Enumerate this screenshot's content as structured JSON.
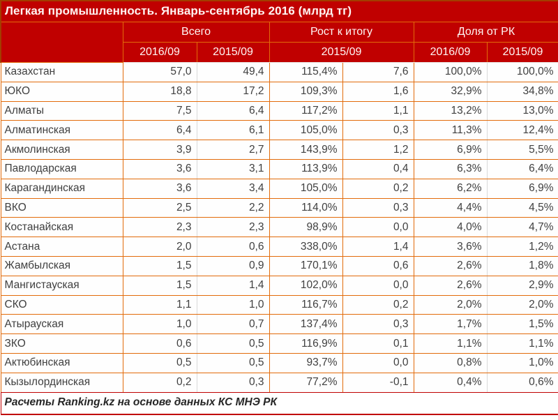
{
  "chart_data": {
    "type": "table",
    "title": "Легкая промышленность. Январь-сентябрь 2016 (млрд тг)",
    "column_groups": [
      "Всего",
      "Рост к итогу",
      "Доля от РК"
    ],
    "sub_headers": [
      "2016/09",
      "2015/09",
      "2015/09",
      "2016/09",
      "2015/09"
    ],
    "rows": [
      {
        "region": "Казахстан",
        "values": [
          "57,0",
          "49,4",
          "115,4%",
          "7,6",
          "100,0%",
          "100,0%"
        ]
      },
      {
        "region": "ЮКО",
        "values": [
          "18,8",
          "17,2",
          "109,3%",
          "1,6",
          "32,9%",
          "34,8%"
        ]
      },
      {
        "region": "Алматы",
        "values": [
          "7,5",
          "6,4",
          "117,2%",
          "1,1",
          "13,2%",
          "13,0%"
        ]
      },
      {
        "region": "Алматинская",
        "values": [
          "6,4",
          "6,1",
          "105,0%",
          "0,3",
          "11,3%",
          "12,4%"
        ]
      },
      {
        "region": "Акмолинская",
        "values": [
          "3,9",
          "2,7",
          "143,9%",
          "1,2",
          "6,9%",
          "5,5%"
        ]
      },
      {
        "region": "Павлодарская",
        "values": [
          "3,6",
          "3,1",
          "113,9%",
          "0,4",
          "6,3%",
          "6,4%"
        ]
      },
      {
        "region": "Карагандинская",
        "values": [
          "3,6",
          "3,4",
          "105,0%",
          "0,2",
          "6,2%",
          "6,9%"
        ]
      },
      {
        "region": "ВКО",
        "values": [
          "2,5",
          "2,2",
          "114,0%",
          "0,3",
          "4,4%",
          "4,5%"
        ]
      },
      {
        "region": "Костанайская",
        "values": [
          "2,3",
          "2,3",
          "98,9%",
          "0,0",
          "4,0%",
          "4,7%"
        ]
      },
      {
        "region": "Астана",
        "values": [
          "2,0",
          "0,6",
          "338,0%",
          "1,4",
          "3,6%",
          "1,2%"
        ]
      },
      {
        "region": "Жамбылская",
        "values": [
          "1,5",
          "0,9",
          "170,1%",
          "0,6",
          "2,6%",
          "1,8%"
        ]
      },
      {
        "region": "Мангистауская",
        "values": [
          "1,5",
          "1,4",
          "102,0%",
          "0,0",
          "2,6%",
          "2,9%"
        ]
      },
      {
        "region": "СКО",
        "values": [
          "1,1",
          "1,0",
          "116,7%",
          "0,2",
          "2,0%",
          "2,0%"
        ]
      },
      {
        "region": "Атырауская",
        "values": [
          "1,0",
          "0,7",
          "137,4%",
          "0,3",
          "1,7%",
          "1,5%"
        ]
      },
      {
        "region": "ЗКО",
        "values": [
          "0,6",
          "0,5",
          "116,9%",
          "0,1",
          "1,1%",
          "1,1%"
        ]
      },
      {
        "region": "Актюбинская",
        "values": [
          "0,5",
          "0,5",
          "93,7%",
          "0,0",
          "0,8%",
          "1,0%"
        ]
      },
      {
        "region": "Кызылординская",
        "values": [
          "0,2",
          "0,3",
          "77,2%",
          "-0,1",
          "0,4%",
          "0,6%"
        ]
      }
    ],
    "footer": "Расчеты Ranking.kz на основе данных КС МНЭ РК"
  },
  "colors": {
    "header_bg": "#C00000",
    "border_orange": "#E26B0A",
    "divider_gray": "#D9D9D9",
    "footer_border_red": "#C00000",
    "body_text": "#3F3F3F",
    "header_text": "#FFFFFF"
  }
}
